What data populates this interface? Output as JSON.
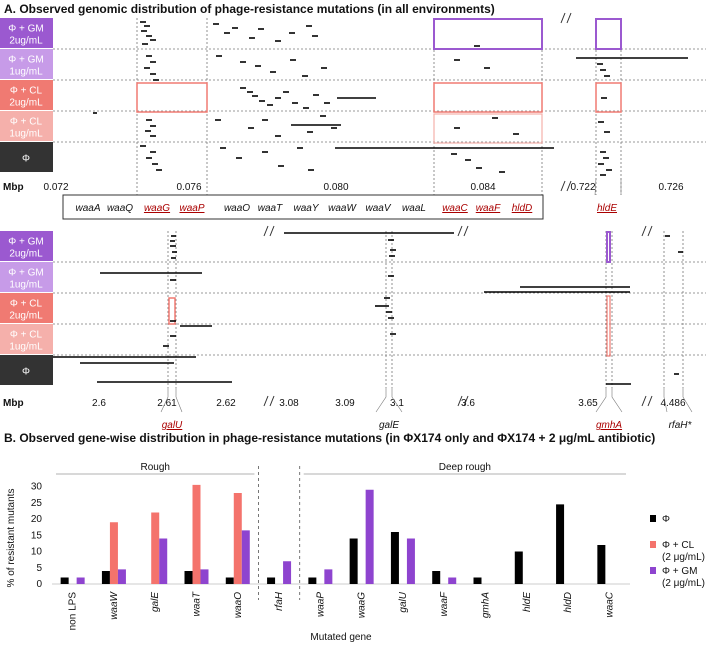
{
  "title_a": "A. Observed genomic distribution of phage-resistance mutations (in all environments)",
  "title_b": "B. Observed gene-wise distribution in phage-resistance mutations (in ΦX174 only and ΦX174 + 2 μg/mL antibiotic)",
  "rows": [
    {
      "line1": "Φ + GM",
      "line2": "2ug/mL",
      "color": "#9b59d0"
    },
    {
      "line1": "Φ + GM",
      "line2": "1ug/mL",
      "color": "#c79be8"
    },
    {
      "line1": "Φ + CL",
      "line2": "2ug/mL",
      "color": "#f07a72"
    },
    {
      "line1": "Φ + CL",
      "line2": "1ug/mL",
      "color": "#f5b0ab"
    },
    {
      "line1": "Φ",
      "line2": "",
      "color": "#333333"
    }
  ],
  "mbp_label": "Mbp",
  "axis_top": [
    "0.072",
    "0.076",
    "0.080",
    "0.084",
    "0.722",
    "0.726"
  ],
  "genes_top": [
    "waaA",
    "waaQ",
    "waaG",
    "waaP",
    "waaO",
    "waaT",
    "waaY",
    "waaW",
    "waaV",
    "waaL",
    "waaC",
    "waaF",
    "hldD"
  ],
  "genes_top_highlight": [
    "waaG",
    "waaP",
    "waaC",
    "waaF",
    "hldD"
  ],
  "hlde_label": "hldE",
  "axis_bottom": [
    "2.6",
    "2.61",
    "2.62",
    "3.08",
    "3.09",
    "3.1",
    "3.6",
    "3.65",
    "4.486"
  ],
  "genes_bottom": [
    "galU",
    "galE",
    "gmhA",
    "rfaH*"
  ],
  "genes_bottom_highlight": [
    "galU",
    "gmhA"
  ],
  "colors": {
    "phi": "#000000",
    "cl": "#f4736c",
    "gm": "#8e44cf",
    "sel_cl": "#f07a72",
    "sel_gm": "#9b59d0"
  },
  "chart_data": {
    "type": "bar",
    "title": "B. Observed gene-wise distribution in phage-resistance mutations (in ΦX174 only and ΦX174 + 2 μg/mL antibiotic)",
    "xlabel": "Mutated gene",
    "ylabel": "% of resistant mutants",
    "ylim": [
      0,
      32
    ],
    "yticks": [
      0,
      5,
      10,
      15,
      20,
      25,
      30
    ],
    "categories": [
      "non LPS",
      "waaW",
      "galE",
      "waaT",
      "waaO",
      "rfaH",
      "waaP",
      "waaG",
      "galU",
      "waaF",
      "gmhA",
      "hldE",
      "hldD",
      "waaC"
    ],
    "groups": [
      {
        "label": "Rough",
        "from": 0,
        "to": 4
      },
      {
        "label": "Deep rough",
        "from": 6,
        "to": 13
      }
    ],
    "series": [
      {
        "name": "Φ",
        "color": "#000000",
        "values": [
          2,
          4,
          0,
          4,
          2,
          2,
          2,
          14,
          16,
          4,
          2,
          10,
          24.5,
          12
        ]
      },
      {
        "name": "Φ + CL (2 μg/mL)",
        "color": "#f4736c",
        "values": [
          0,
          19,
          22,
          30.5,
          28,
          0,
          0,
          0,
          0,
          0,
          0,
          0,
          0,
          0
        ]
      },
      {
        "name": "Φ + GM (2 μg/mL)",
        "color": "#8e44cf",
        "values": [
          2,
          4.5,
          14,
          4.5,
          16.5,
          7,
          4.5,
          29,
          14,
          2,
          0,
          0,
          0,
          0
        ]
      }
    ],
    "legend": [
      {
        "line1": "Φ",
        "line2": ""
      },
      {
        "line1": "Φ + CL",
        "line2": "(2 μg/mL)"
      },
      {
        "line1": "Φ + GM",
        "line2": "(2 μg/mL)"
      }
    ],
    "legend_position": "right"
  }
}
